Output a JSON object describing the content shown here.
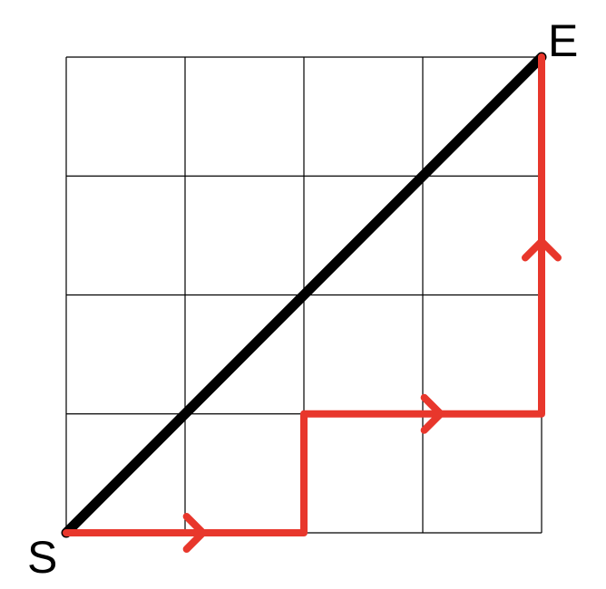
{
  "diagram": {
    "grid": {
      "rows": 4,
      "cols": 4
    },
    "start_label": "S",
    "end_label": "E",
    "diagonal": {
      "from": "S",
      "to": "E",
      "color": "#000000"
    },
    "path": {
      "color": "#e8372c",
      "steps": [
        "right",
        "right",
        "up",
        "right",
        "right",
        "up",
        "up",
        "up"
      ]
    },
    "arrows": [
      {
        "direction": "right"
      },
      {
        "direction": "right"
      },
      {
        "direction": "up"
      }
    ]
  }
}
